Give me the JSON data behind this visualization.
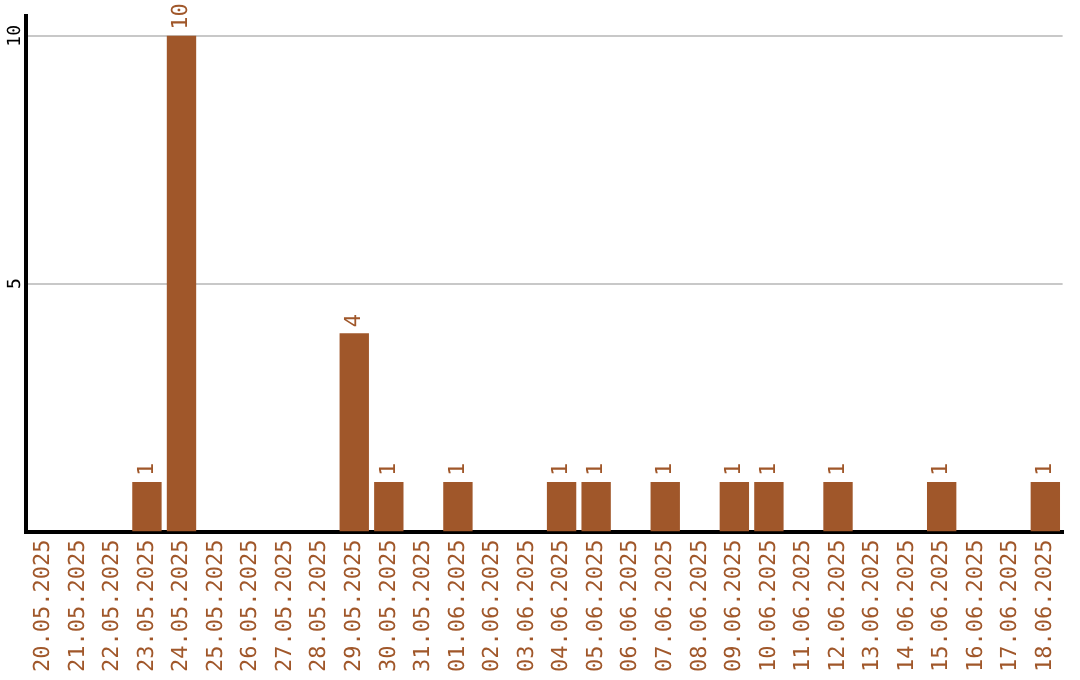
{
  "chart_data": {
    "type": "bar",
    "categories": [
      "20.05.2025",
      "21.05.2025",
      "22.05.2025",
      "23.05.2025",
      "24.05.2025",
      "25.05.2025",
      "26.05.2025",
      "27.05.2025",
      "28.05.2025",
      "29.05.2025",
      "30.05.2025",
      "31.05.2025",
      "01.06.2025",
      "02.06.2025",
      "03.06.2025",
      "04.06.2025",
      "05.06.2025",
      "06.06.2025",
      "07.06.2025",
      "08.06.2025",
      "09.06.2025",
      "10.06.2025",
      "11.06.2025",
      "12.06.2025",
      "13.06.2025",
      "14.06.2025",
      "15.06.2025",
      "16.06.2025",
      "17.06.2025",
      "18.06.2025"
    ],
    "values": [
      0,
      0,
      0,
      1,
      10,
      0,
      0,
      0,
      0,
      4,
      1,
      0,
      1,
      0,
      0,
      1,
      1,
      0,
      1,
      0,
      1,
      1,
      0,
      1,
      0,
      0,
      1,
      0,
      0,
      1
    ],
    "value_labels": [
      null,
      null,
      null,
      "1",
      "10",
      null,
      null,
      null,
      null,
      "4",
      "1",
      null,
      "1",
      null,
      null,
      "1",
      "1",
      null,
      "1",
      null,
      "1",
      "1",
      null,
      "1",
      null,
      null,
      "1",
      null,
      null,
      "1"
    ],
    "color": "#a0572a",
    "ylim": [
      0,
      10.4
    ],
    "yticks": [
      5,
      10
    ],
    "grid": "y",
    "legend": false
  }
}
